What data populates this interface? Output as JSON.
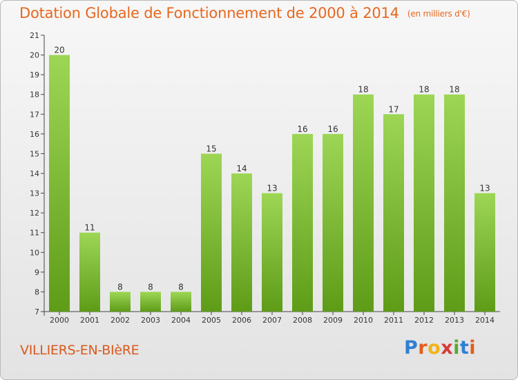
{
  "chart_data": {
    "type": "bar",
    "title": "Dotation Globale de Fonctionnement de 2000 à 2014",
    "subtitle": "(en milliers d'€)",
    "categories": [
      "2000",
      "2001",
      "2002",
      "2003",
      "2004",
      "2005",
      "2006",
      "2007",
      "2008",
      "2009",
      "2010",
      "2011",
      "2012",
      "2013",
      "2014"
    ],
    "values": [
      20,
      11,
      8,
      8,
      8,
      15,
      14,
      13,
      16,
      16,
      18,
      17,
      18,
      18,
      13
    ],
    "ylim": [
      7,
      21
    ],
    "yticks": [
      7,
      8,
      9,
      10,
      11,
      12,
      13,
      14,
      15,
      16,
      17,
      18,
      19,
      20,
      21
    ],
    "bar_color_top": "#9dd655",
    "bar_color_bottom": "#5e9c18",
    "grid": false
  },
  "footer": {
    "town": "VILLIERS-EN-BIèRE",
    "logo_letters": [
      "P",
      "r",
      "o",
      "x",
      "i",
      "t",
      "i"
    ],
    "logo_colors": [
      "#2f7fd4",
      "#e45d1b",
      "#f2b21b",
      "#d93a3a",
      "#5aa832",
      "#2f7fd4",
      "#e45d1b"
    ]
  }
}
